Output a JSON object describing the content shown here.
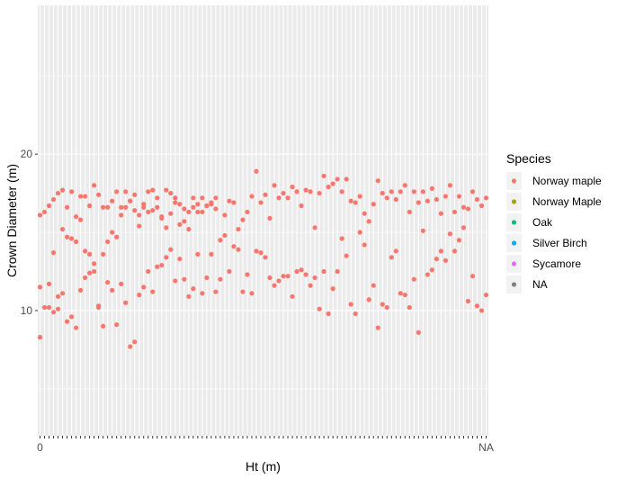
{
  "chart_data": {
    "type": "scatter",
    "xlabel": "Ht (m)",
    "ylabel": "Crown Diameter (m)",
    "x_axis": "discrete (crowded categorical tick labels, unreadable)",
    "x_tick_labels_visible": [
      "0",
      "NA"
    ],
    "y_ticks": [
      10,
      20
    ],
    "ylim": [
      2,
      29.5
    ],
    "grid": true,
    "background": "#ebebeb",
    "legend": {
      "title": "Species",
      "position": "right",
      "entries": [
        {
          "label": "Norway maple",
          "color": "#F8766D"
        },
        {
          "label": "Norway Maple",
          "color": "#A3A500"
        },
        {
          "label": "Oak",
          "color": "#00BF7D"
        },
        {
          "label": "Silver Birch",
          "color": "#00B0F6"
        },
        {
          "label": "Sycamore",
          "color": "#E76BF3"
        },
        {
          "label": "NA",
          "color": "#7F7F7F"
        }
      ]
    },
    "x_category_count": 100,
    "series": [
      {
        "name": "Norway maple",
        "points": [
          [
            1,
            8.3
          ],
          [
            3,
            11.7
          ],
          [
            4,
            13.7
          ],
          [
            5,
            10.9
          ],
          [
            6,
            11.1
          ],
          [
            7,
            9.3
          ],
          [
            8,
            9.6
          ],
          [
            9,
            8.9
          ],
          [
            10,
            11.3
          ],
          [
            11,
            12.1
          ],
          [
            12,
            12.4
          ],
          [
            13,
            12.5
          ],
          [
            14,
            10.2
          ],
          [
            15,
            9.0
          ],
          [
            16,
            11.8
          ],
          [
            17,
            11.3
          ],
          [
            18,
            9.1
          ],
          [
            19,
            11.7
          ],
          [
            20,
            10.5
          ],
          [
            21,
            7.7
          ],
          [
            22,
            8.0
          ],
          [
            23,
            11.0
          ],
          [
            24,
            11.5
          ],
          [
            25,
            12.5
          ],
          [
            26,
            11.2
          ],
          [
            27,
            12.8
          ],
          [
            28,
            12.9
          ],
          [
            29,
            13.4
          ],
          [
            30,
            13.9
          ],
          [
            31,
            11.9
          ],
          [
            32,
            13.3
          ],
          [
            33,
            12.0
          ],
          [
            34,
            10.9
          ],
          [
            35,
            11.4
          ],
          [
            36,
            13.6
          ],
          [
            37,
            11.1
          ],
          [
            38,
            12.1
          ],
          [
            39,
            13.6
          ],
          [
            40,
            11.2
          ],
          [
            41,
            12.0
          ],
          [
            42,
            14.8
          ],
          [
            43,
            12.5
          ],
          [
            44,
            14.1
          ],
          [
            45,
            13.9
          ],
          [
            46,
            11.2
          ],
          [
            47,
            12.3
          ],
          [
            48,
            11.1
          ],
          [
            49,
            13.8
          ],
          [
            50,
            13.7
          ],
          [
            51,
            13.4
          ],
          [
            52,
            12.1
          ],
          [
            53,
            11.6
          ],
          [
            54,
            11.9
          ],
          [
            55,
            12.2
          ],
          [
            56,
            12.2
          ],
          [
            57,
            10.9
          ],
          [
            58,
            12.5
          ],
          [
            59,
            12.6
          ],
          [
            60,
            12.3
          ],
          [
            61,
            11.6
          ],
          [
            62,
            12.1
          ],
          [
            63,
            10.1
          ],
          [
            64,
            12.5
          ],
          [
            65,
            9.8
          ],
          [
            66,
            11.4
          ],
          [
            67,
            12.5
          ],
          [
            68,
            14.6
          ],
          [
            69,
            13.5
          ],
          [
            70,
            10.4
          ],
          [
            71,
            9.8
          ],
          [
            72,
            15.0
          ],
          [
            73,
            14.2
          ],
          [
            74,
            10.7
          ],
          [
            75,
            11.6
          ],
          [
            76,
            8.9
          ],
          [
            77,
            10.4
          ],
          [
            78,
            10.2
          ],
          [
            79,
            13.4
          ],
          [
            80,
            13.8
          ],
          [
            81,
            11.1
          ],
          [
            82,
            11.0
          ],
          [
            83,
            10.2
          ],
          [
            84,
            12.0
          ],
          [
            85,
            8.6
          ],
          [
            86,
            15.1
          ],
          [
            87,
            12.3
          ],
          [
            88,
            12.6
          ],
          [
            89,
            13.3
          ],
          [
            90,
            13.8
          ],
          [
            91,
            13.2
          ],
          [
            92,
            14.9
          ],
          [
            93,
            13.8
          ],
          [
            94,
            14.5
          ],
          [
            95,
            15.3
          ],
          [
            96,
            10.6
          ],
          [
            97,
            12.2
          ],
          [
            98,
            10.3
          ],
          [
            99,
            10.0
          ],
          [
            100,
            11.0
          ],
          [
            101,
            11.5
          ],
          [
            102,
            10.2
          ],
          [
            103,
            10.2
          ],
          [
            104,
            9.9
          ],
          [
            105,
            10.1
          ],
          [
            106,
            15.2
          ],
          [
            107,
            14.7
          ],
          [
            108,
            14.6
          ],
          [
            109,
            14.4
          ],
          [
            110,
            15.8
          ],
          [
            111,
            13.8
          ],
          [
            112,
            13.6
          ],
          [
            113,
            13.0
          ],
          [
            114,
            10.3
          ],
          [
            115,
            13.6
          ],
          [
            116,
            14.4
          ],
          [
            117,
            15.0
          ],
          [
            118,
            14.7
          ],
          [
            119,
            16.1
          ],
          [
            120,
            16.6
          ],
          [
            121,
            17.0
          ],
          [
            122,
            17.4
          ],
          [
            123,
            15.4
          ],
          [
            124,
            16.8
          ],
          [
            125,
            16.3
          ],
          [
            126,
            17.7
          ],
          [
            127,
            17.2
          ],
          [
            128,
            16.0
          ],
          [
            129,
            15.3
          ],
          [
            130,
            16.2
          ],
          [
            131,
            16.9
          ],
          [
            132,
            15.5
          ],
          [
            133,
            15.7
          ],
          [
            134,
            16.3
          ],
          [
            135,
            16.6
          ],
          [
            136,
            16.3
          ],
          [
            137,
            17.2
          ],
          [
            138,
            16.7
          ],
          [
            139,
            16.9
          ],
          [
            140,
            16.5
          ],
          [
            141,
            14.5
          ],
          [
            142,
            16.1
          ],
          [
            143,
            17.0
          ],
          [
            144,
            16.9
          ],
          [
            145,
            15.2
          ],
          [
            146,
            15.8
          ],
          [
            147,
            16.3
          ],
          [
            148,
            17.3
          ],
          [
            149,
            18.9
          ],
          [
            150,
            16.9
          ],
          [
            151,
            17.4
          ],
          [
            152,
            15.9
          ],
          [
            153,
            18.0
          ],
          [
            154,
            17.2
          ],
          [
            155,
            17.5
          ],
          [
            156,
            17.2
          ],
          [
            157,
            17.9
          ],
          [
            158,
            17.6
          ],
          [
            159,
            16.7
          ],
          [
            160,
            17.7
          ],
          [
            161,
            17.6
          ],
          [
            162,
            15.3
          ],
          [
            163,
            17.5
          ],
          [
            164,
            18.6
          ],
          [
            165,
            17.9
          ],
          [
            166,
            18.1
          ],
          [
            167,
            18.4
          ],
          [
            168,
            17.6
          ],
          [
            169,
            18.4
          ],
          [
            170,
            17.0
          ],
          [
            171,
            16.9
          ],
          [
            172,
            17.3
          ],
          [
            173,
            16.2
          ],
          [
            174,
            15.7
          ],
          [
            175,
            16.8
          ],
          [
            176,
            18.3
          ],
          [
            177,
            17.5
          ],
          [
            178,
            17.2
          ],
          [
            179,
            17.6
          ],
          [
            180,
            17.1
          ],
          [
            181,
            17.6
          ],
          [
            182,
            18.0
          ],
          [
            183,
            16.3
          ],
          [
            184,
            17.6
          ],
          [
            185,
            16.9
          ],
          [
            186,
            17.6
          ],
          [
            187,
            17.0
          ],
          [
            188,
            17.8
          ],
          [
            189,
            17.1
          ],
          [
            190,
            16.2
          ],
          [
            191,
            17.3
          ],
          [
            192,
            18.0
          ],
          [
            193,
            16.3
          ],
          [
            194,
            17.3
          ],
          [
            195,
            16.6
          ],
          [
            196,
            16.5
          ],
          [
            197,
            17.6
          ],
          [
            198,
            17.1
          ],
          [
            199,
            16.7
          ],
          [
            200,
            17.2
          ],
          [
            201,
            16.1
          ],
          [
            202,
            16.3
          ],
          [
            203,
            16.7
          ],
          [
            204,
            17.1
          ],
          [
            205,
            17.5
          ],
          [
            206,
            17.7
          ],
          [
            207,
            16.6
          ],
          [
            208,
            17.6
          ],
          [
            209,
            16.0
          ],
          [
            210,
            17.3
          ],
          [
            211,
            17.3
          ],
          [
            212,
            16.7
          ],
          [
            213,
            18.0
          ],
          [
            214,
            17.4
          ],
          [
            215,
            16.6
          ],
          [
            216,
            16.6
          ],
          [
            217,
            17.0
          ],
          [
            218,
            17.6
          ],
          [
            219,
            16.6
          ],
          [
            220,
            17.6
          ],
          [
            221,
            17.0
          ],
          [
            222,
            16.4
          ],
          [
            223,
            16.1
          ],
          [
            224,
            16.6
          ],
          [
            225,
            17.6
          ],
          [
            226,
            16.4
          ],
          [
            227,
            16.6
          ],
          [
            228,
            15.9
          ],
          [
            229,
            17.7
          ],
          [
            230,
            17.5
          ],
          [
            231,
            17.2
          ],
          [
            232,
            16.8
          ],
          [
            233,
            16.5
          ],
          [
            234,
            15.2
          ],
          [
            235,
            17.2
          ],
          [
            236,
            16.8
          ],
          [
            237,
            16.3
          ],
          [
            238,
            16.7
          ],
          [
            239,
            16.8
          ],
          [
            240,
            17.2
          ]
        ],
        "color": "#F8766D"
      }
    ]
  }
}
